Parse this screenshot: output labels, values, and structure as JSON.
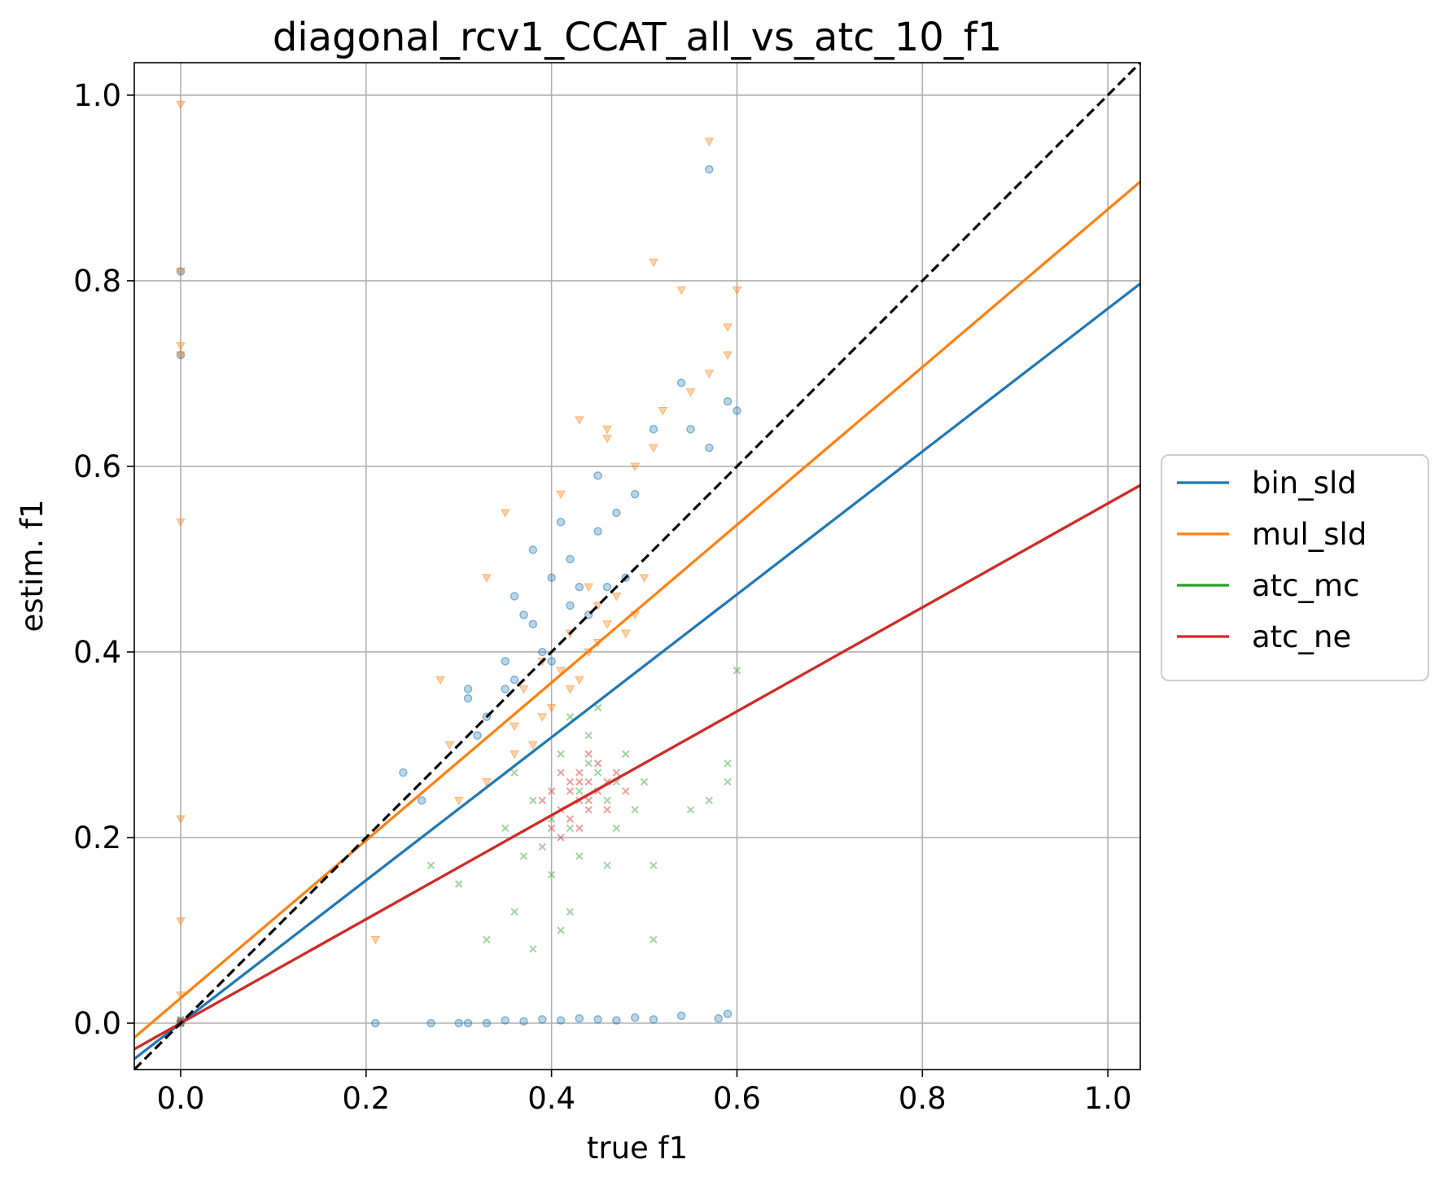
{
  "chart_data": {
    "type": "scatter",
    "title": "diagonal_rcv1_CCAT_all_vs_atc_10_f1",
    "xlabel": "true f1",
    "ylabel": "estim. f1",
    "xlim": [
      -0.05,
      1.035
    ],
    "ylim": [
      -0.05,
      1.035
    ],
    "xticks": [
      "0.0",
      "0.2",
      "0.4",
      "0.6",
      "0.8",
      "1.0"
    ],
    "yticks": [
      "0.0",
      "0.2",
      "0.4",
      "0.6",
      "0.8",
      "1.0"
    ],
    "grid": true,
    "legend_position": "center-right outside",
    "series": [
      {
        "name": "bin_sld",
        "color": "#1f77b4",
        "marker": "circle",
        "fit": {
          "slope": 0.77,
          "intercept": 0.0
        },
        "points": [
          [
            0.0,
            0.81
          ],
          [
            0.0,
            0.72
          ],
          [
            0.57,
            0.92
          ],
          [
            0.59,
            0.67
          ],
          [
            0.6,
            0.66
          ],
          [
            0.54,
            0.69
          ],
          [
            0.51,
            0.64
          ],
          [
            0.57,
            0.62
          ],
          [
            0.55,
            0.64
          ],
          [
            0.24,
            0.27
          ],
          [
            0.26,
            0.24
          ],
          [
            0.31,
            0.36
          ],
          [
            0.31,
            0.35
          ],
          [
            0.38,
            0.51
          ],
          [
            0.41,
            0.54
          ],
          [
            0.42,
            0.5
          ],
          [
            0.45,
            0.53
          ],
          [
            0.47,
            0.55
          ],
          [
            0.45,
            0.59
          ],
          [
            0.49,
            0.57
          ],
          [
            0.39,
            0.4
          ],
          [
            0.36,
            0.46
          ],
          [
            0.37,
            0.44
          ],
          [
            0.35,
            0.39
          ],
          [
            0.33,
            0.33
          ],
          [
            0.4,
            0.48
          ],
          [
            0.43,
            0.47
          ],
          [
            0.46,
            0.47
          ],
          [
            0.48,
            0.48
          ],
          [
            0.42,
            0.45
          ],
          [
            0.38,
            0.43
          ],
          [
            0.35,
            0.36
          ],
          [
            0.32,
            0.31
          ],
          [
            0.21,
            0.0
          ],
          [
            0.27,
            0.0
          ],
          [
            0.3,
            0.0
          ],
          [
            0.31,
            0.0
          ],
          [
            0.33,
            0.0
          ],
          [
            0.35,
            0.003
          ],
          [
            0.37,
            0.002
          ],
          [
            0.39,
            0.004
          ],
          [
            0.41,
            0.003
          ],
          [
            0.43,
            0.005
          ],
          [
            0.45,
            0.004
          ],
          [
            0.47,
            0.003
          ],
          [
            0.49,
            0.006
          ],
          [
            0.51,
            0.004
          ],
          [
            0.54,
            0.008
          ],
          [
            0.58,
            0.005
          ],
          [
            0.59,
            0.01
          ],
          [
            0.0,
            0.0
          ],
          [
            0.0,
            0.002
          ],
          [
            0.36,
            0.37
          ],
          [
            0.4,
            0.39
          ],
          [
            0.44,
            0.44
          ]
        ]
      },
      {
        "name": "mul_sld",
        "color": "#ff7f0e",
        "marker": "triangle",
        "fit": {
          "slope": 0.85,
          "intercept": 0.027
        },
        "points": [
          [
            0.0,
            0.99
          ],
          [
            0.0,
            0.81
          ],
          [
            0.0,
            0.73
          ],
          [
            0.0,
            0.72
          ],
          [
            0.0,
            0.54
          ],
          [
            0.0,
            0.22
          ],
          [
            0.0,
            0.11
          ],
          [
            0.0,
            0.03
          ],
          [
            0.57,
            0.95
          ],
          [
            0.51,
            0.82
          ],
          [
            0.54,
            0.79
          ],
          [
            0.6,
            0.79
          ],
          [
            0.59,
            0.75
          ],
          [
            0.59,
            0.72
          ],
          [
            0.57,
            0.7
          ],
          [
            0.55,
            0.68
          ],
          [
            0.52,
            0.66
          ],
          [
            0.43,
            0.65
          ],
          [
            0.46,
            0.64
          ],
          [
            0.46,
            0.63
          ],
          [
            0.51,
            0.62
          ],
          [
            0.49,
            0.6
          ],
          [
            0.35,
            0.55
          ],
          [
            0.41,
            0.57
          ],
          [
            0.33,
            0.48
          ],
          [
            0.28,
            0.37
          ],
          [
            0.29,
            0.3
          ],
          [
            0.3,
            0.24
          ],
          [
            0.36,
            0.29
          ],
          [
            0.33,
            0.26
          ],
          [
            0.21,
            0.09
          ],
          [
            0.37,
            0.36
          ],
          [
            0.39,
            0.33
          ],
          [
            0.41,
            0.38
          ],
          [
            0.42,
            0.42
          ],
          [
            0.44,
            0.4
          ],
          [
            0.45,
            0.45
          ],
          [
            0.47,
            0.46
          ],
          [
            0.48,
            0.42
          ],
          [
            0.4,
            0.34
          ],
          [
            0.43,
            0.37
          ],
          [
            0.46,
            0.43
          ],
          [
            0.38,
            0.3
          ],
          [
            0.44,
            0.47
          ],
          [
            0.5,
            0.48
          ],
          [
            0.49,
            0.44
          ],
          [
            0.39,
            0.39
          ],
          [
            0.42,
            0.36
          ],
          [
            0.45,
            0.41
          ],
          [
            0.36,
            0.32
          ],
          [
            0.0,
            0.0
          ]
        ]
      },
      {
        "name": "atc_mc",
        "color": "#2ca02c",
        "marker": "x",
        "fit": {
          "slope": 0.56,
          "intercept": 0.0
        },
        "points": [
          [
            0.0,
            0.0
          ],
          [
            0.0,
            0.004
          ],
          [
            0.6,
            0.38
          ],
          [
            0.59,
            0.28
          ],
          [
            0.59,
            0.26
          ],
          [
            0.57,
            0.24
          ],
          [
            0.55,
            0.23
          ],
          [
            0.51,
            0.17
          ],
          [
            0.51,
            0.09
          ],
          [
            0.42,
            0.12
          ],
          [
            0.38,
            0.08
          ],
          [
            0.33,
            0.09
          ],
          [
            0.3,
            0.15
          ],
          [
            0.27,
            0.17
          ],
          [
            0.36,
            0.12
          ],
          [
            0.41,
            0.1
          ],
          [
            0.44,
            0.28
          ],
          [
            0.43,
            0.25
          ],
          [
            0.46,
            0.24
          ],
          [
            0.4,
            0.22
          ],
          [
            0.42,
            0.21
          ],
          [
            0.45,
            0.27
          ],
          [
            0.47,
            0.26
          ],
          [
            0.38,
            0.24
          ],
          [
            0.41,
            0.29
          ],
          [
            0.44,
            0.31
          ],
          [
            0.48,
            0.29
          ],
          [
            0.39,
            0.19
          ],
          [
            0.43,
            0.18
          ],
          [
            0.47,
            0.21
          ],
          [
            0.36,
            0.27
          ],
          [
            0.35,
            0.21
          ],
          [
            0.49,
            0.23
          ],
          [
            0.5,
            0.26
          ],
          [
            0.42,
            0.33
          ],
          [
            0.45,
            0.34
          ],
          [
            0.4,
            0.16
          ],
          [
            0.46,
            0.17
          ],
          [
            0.37,
            0.18
          ]
        ]
      },
      {
        "name": "atc_ne",
        "color": "#d62728",
        "marker": "x",
        "fit": {
          "slope": 0.56,
          "intercept": 0.0
        },
        "points": [
          [
            0.0,
            0.0
          ],
          [
            0.0,
            0.003
          ],
          [
            0.42,
            0.25
          ],
          [
            0.43,
            0.24
          ],
          [
            0.44,
            0.26
          ],
          [
            0.41,
            0.23
          ],
          [
            0.45,
            0.25
          ],
          [
            0.43,
            0.27
          ],
          [
            0.42,
            0.22
          ],
          [
            0.44,
            0.23
          ],
          [
            0.46,
            0.26
          ],
          [
            0.4,
            0.25
          ],
          [
            0.43,
            0.26
          ],
          [
            0.45,
            0.28
          ],
          [
            0.41,
            0.27
          ],
          [
            0.44,
            0.24
          ],
          [
            0.42,
            0.26
          ],
          [
            0.46,
            0.23
          ],
          [
            0.4,
            0.21
          ],
          [
            0.47,
            0.27
          ],
          [
            0.43,
            0.21
          ],
          [
            0.39,
            0.24
          ],
          [
            0.48,
            0.25
          ],
          [
            0.44,
            0.29
          ],
          [
            0.41,
            0.2
          ]
        ]
      }
    ],
    "reference_line": {
      "style": "dashed",
      "color": "#000000",
      "slope": 1.0,
      "intercept": 0.0
    }
  }
}
